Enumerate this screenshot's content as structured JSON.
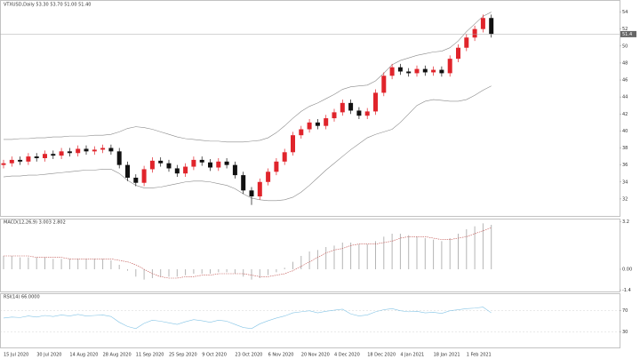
{
  "chart_data": [
    {
      "type": "candlestick",
      "title": "VTXUSD,Daily 53.30 53.70 51.00 51.40",
      "categories": [
        "15 Jul 2020",
        null,
        null,
        null,
        "30 Jul 2020",
        null,
        null,
        null,
        "14 Aug 2020",
        null,
        null,
        null,
        "28 Aug 2020",
        null,
        null,
        null,
        "11 Sep 2020",
        null,
        null,
        null,
        "25 Sep 2020",
        null,
        null,
        null,
        "9 Oct 2020",
        null,
        null,
        null,
        "23 Oct 2020",
        null,
        null,
        null,
        "6 Nov 2020",
        null,
        null,
        null,
        "20 Nov 2020",
        null,
        null,
        null,
        "4 Dec 2020",
        null,
        null,
        null,
        "18 Dec 2020",
        null,
        null,
        null,
        "4 Jan 2021",
        null,
        null,
        null,
        "18 Jan 2021",
        null,
        null,
        null,
        "1 Feb 2021",
        null,
        null,
        null
      ],
      "open": [
        36.0,
        36.2,
        36.6,
        36.4,
        37.0,
        36.8,
        37.3,
        37.1,
        37.6,
        37.4,
        37.9,
        37.6,
        37.8,
        38.0,
        37.6,
        36.0,
        34.5,
        33.9,
        35.5,
        36.5,
        36.2,
        35.6,
        35.0,
        35.8,
        36.6,
        36.3,
        35.7,
        36.4,
        36.0,
        34.8,
        33.0,
        32.3,
        34.0,
        35.2,
        36.4,
        37.5,
        39.5,
        40.2,
        41.0,
        40.6,
        41.5,
        42.2,
        43.3,
        42.4,
        41.8,
        42.3,
        44.5,
        46.5,
        47.5,
        47.0,
        46.8,
        47.3,
        46.9,
        47.2,
        46.8,
        48.5,
        49.8,
        51.0,
        52.0,
        53.3
      ],
      "high": [
        36.6,
        37.0,
        37.0,
        37.4,
        37.4,
        37.7,
        37.7,
        38.0,
        38.0,
        38.3,
        38.3,
        38.2,
        38.4,
        38.4,
        38.0,
        36.4,
        34.9,
        35.9,
        36.9,
        36.9,
        36.6,
        36.0,
        36.2,
        37.0,
        37.0,
        36.7,
        36.8,
        36.8,
        36.4,
        35.2,
        33.4,
        34.4,
        35.6,
        36.8,
        37.9,
        39.9,
        40.6,
        41.4,
        41.4,
        41.9,
        42.6,
        43.7,
        43.7,
        42.8,
        42.7,
        44.9,
        46.9,
        47.9,
        47.9,
        47.4,
        47.7,
        47.7,
        47.6,
        47.6,
        48.9,
        50.2,
        51.4,
        52.4,
        53.7,
        53.7
      ],
      "low": [
        35.6,
        35.8,
        36.0,
        36.0,
        36.4,
        36.4,
        36.7,
        36.7,
        37.0,
        37.0,
        37.2,
        37.2,
        37.4,
        37.2,
        35.6,
        34.1,
        33.5,
        33.5,
        35.1,
        35.8,
        35.2,
        34.6,
        34.6,
        35.4,
        35.9,
        35.3,
        35.3,
        35.6,
        34.4,
        32.6,
        31.3,
        31.9,
        33.6,
        34.8,
        36.0,
        37.1,
        39.1,
        39.8,
        40.2,
        40.2,
        41.1,
        41.8,
        42.0,
        41.4,
        41.4,
        41.9,
        44.1,
        46.1,
        46.6,
        46.4,
        46.4,
        46.5,
        46.5,
        46.4,
        46.4,
        48.1,
        49.4,
        50.6,
        51.6,
        51.0
      ],
      "close": [
        36.2,
        36.6,
        36.4,
        37.0,
        36.8,
        37.3,
        37.1,
        37.6,
        37.4,
        37.9,
        37.6,
        37.8,
        38.0,
        37.6,
        36.0,
        34.5,
        33.9,
        35.5,
        36.5,
        36.2,
        35.6,
        35.0,
        35.8,
        36.6,
        36.3,
        35.7,
        36.4,
        36.0,
        34.8,
        33.0,
        32.3,
        34.0,
        35.2,
        36.4,
        37.5,
        39.5,
        40.2,
        41.0,
        40.6,
        41.5,
        42.2,
        43.3,
        42.4,
        41.8,
        42.3,
        44.5,
        46.5,
        47.5,
        47.0,
        46.8,
        47.3,
        46.9,
        47.2,
        46.8,
        48.5,
        49.8,
        51.0,
        52.0,
        53.3,
        51.4
      ],
      "up_color": "#e0242b",
      "down_color": "#111111",
      "bands": {
        "color": "#8a8a8a",
        "upper": [
          39.0,
          39.0,
          39.1,
          39.1,
          39.2,
          39.2,
          39.3,
          39.3,
          39.4,
          39.4,
          39.4,
          39.5,
          39.5,
          39.6,
          39.9,
          40.3,
          40.5,
          40.4,
          40.2,
          39.9,
          39.6,
          39.3,
          39.1,
          39.0,
          38.9,
          38.8,
          38.8,
          38.7,
          38.7,
          38.7,
          38.8,
          38.9,
          39.2,
          39.8,
          40.6,
          41.5,
          42.3,
          42.9,
          43.3,
          43.8,
          44.3,
          44.9,
          45.2,
          45.3,
          45.4,
          45.9,
          46.8,
          47.8,
          48.3,
          48.6,
          48.9,
          49.1,
          49.3,
          49.4,
          49.8,
          50.6,
          51.7,
          52.6,
          53.5,
          54.0
        ],
        "lower": [
          34.6,
          34.7,
          34.7,
          34.8,
          34.8,
          34.9,
          35.0,
          35.1,
          35.2,
          35.3,
          35.4,
          35.4,
          35.5,
          35.5,
          35.0,
          34.2,
          33.6,
          33.3,
          33.3,
          33.4,
          33.6,
          33.8,
          34.0,
          34.1,
          34.1,
          34.0,
          33.8,
          33.6,
          33.2,
          32.6,
          32.1,
          31.9,
          31.8,
          31.8,
          31.9,
          32.2,
          32.8,
          33.6,
          34.5,
          35.4,
          36.2,
          37.0,
          37.8,
          38.5,
          39.2,
          39.6,
          39.9,
          40.2,
          41.0,
          42.0,
          43.0,
          43.5,
          43.7,
          43.6,
          43.5,
          43.5,
          43.7,
          44.2,
          44.8,
          45.3
        ]
      },
      "ylim": [
        30,
        55
      ],
      "yticks": [
        32,
        34,
        36,
        38,
        40,
        42,
        44,
        46,
        48,
        50,
        52,
        54
      ]
    },
    {
      "type": "macd",
      "title": "MACD(12,26,9) 3.003 2.802",
      "values": [
        0.9,
        0.9,
        0.8,
        0.8,
        0.8,
        0.8,
        0.7,
        0.7,
        0.7,
        0.7,
        0.7,
        0.7,
        0.7,
        0.6,
        0.3,
        -0.1,
        -0.5,
        -0.7,
        -0.6,
        -0.5,
        -0.5,
        -0.5,
        -0.4,
        -0.3,
        -0.3,
        -0.3,
        -0.2,
        -0.2,
        -0.3,
        -0.5,
        -0.7,
        -0.6,
        -0.4,
        -0.2,
        0.1,
        0.5,
        0.9,
        1.2,
        1.3,
        1.5,
        1.6,
        1.8,
        1.8,
        1.7,
        1.7,
        1.9,
        2.2,
        2.4,
        2.4,
        2.3,
        2.2,
        2.1,
        2.0,
        1.9,
        2.1,
        2.4,
        2.7,
        2.9,
        3.1,
        3.0
      ],
      "signal": [
        0.9,
        0.9,
        0.9,
        0.9,
        0.8,
        0.8,
        0.8,
        0.8,
        0.7,
        0.7,
        0.7,
        0.7,
        0.7,
        0.7,
        0.6,
        0.5,
        0.3,
        0.0,
        -0.3,
        -0.5,
        -0.6,
        -0.6,
        -0.5,
        -0.5,
        -0.4,
        -0.4,
        -0.3,
        -0.3,
        -0.3,
        -0.3,
        -0.4,
        -0.5,
        -0.5,
        -0.4,
        -0.3,
        -0.1,
        0.2,
        0.5,
        0.8,
        1.1,
        1.3,
        1.4,
        1.6,
        1.7,
        1.7,
        1.7,
        1.8,
        1.9,
        2.1,
        2.2,
        2.2,
        2.2,
        2.1,
        2.0,
        2.0,
        2.1,
        2.2,
        2.4,
        2.6,
        2.8
      ],
      "color": "#b5b5b5",
      "signal_color": "#c0504d",
      "ylim": [
        -1.5,
        3.3
      ],
      "yticks": [
        -1.4,
        {
          "value": 0,
          "label": "0.00"
        },
        3.2
      ]
    },
    {
      "type": "line",
      "title": "RSI(14) 66.0000",
      "values": [
        56,
        58,
        57,
        60,
        58,
        61,
        59,
        62,
        60,
        63,
        60,
        61,
        62,
        59,
        48,
        40,
        36,
        46,
        52,
        50,
        47,
        44,
        49,
        53,
        51,
        48,
        52,
        50,
        44,
        38,
        36,
        45,
        51,
        56,
        60,
        66,
        68,
        70,
        66,
        69,
        71,
        73,
        64,
        60,
        62,
        68,
        72,
        74,
        70,
        68,
        69,
        66,
        67,
        65,
        70,
        72,
        74,
        75,
        77,
        66
      ],
      "color": "#86c5e6",
      "ylim": [
        0,
        100
      ],
      "yticks": [
        30,
        70
      ]
    }
  ]
}
